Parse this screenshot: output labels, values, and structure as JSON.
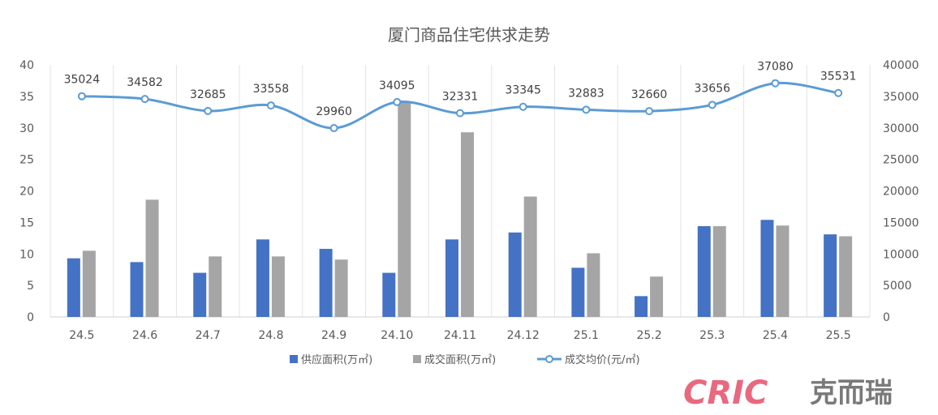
{
  "chart_data": {
    "type": "bar",
    "title": "厦门商品住宅供求走势",
    "categories": [
      "24.5",
      "24.6",
      "24.7",
      "24.8",
      "24.9",
      "24.10",
      "24.11",
      "24.12",
      "25.1",
      "25.2",
      "25.3",
      "25.4",
      "25.5"
    ],
    "left_axis": {
      "min": 0,
      "max": 40,
      "step": 5,
      "ticks": [
        "0",
        "5",
        "10",
        "15",
        "20",
        "25",
        "30",
        "35",
        "40"
      ]
    },
    "right_axis": {
      "min": 0,
      "max": 40000,
      "step": 5000,
      "ticks": [
        "0",
        "5000",
        "10000",
        "15000",
        "20000",
        "25000",
        "30000",
        "35000",
        "40000"
      ]
    },
    "series": [
      {
        "name": "供应面积(万㎡)",
        "kind": "bar",
        "axis": "left",
        "color": "#4472c4",
        "values": [
          9.3,
          8.7,
          7.0,
          12.3,
          10.8,
          7.0,
          12.3,
          13.4,
          7.8,
          3.3,
          14.4,
          15.4,
          13.1
        ]
      },
      {
        "name": "成交面积(万㎡)",
        "kind": "bar",
        "axis": "left",
        "color": "#a5a5a5",
        "values": [
          10.5,
          18.6,
          9.6,
          9.6,
          9.1,
          34.0,
          29.3,
          19.1,
          10.1,
          6.4,
          14.4,
          14.5,
          12.8
        ]
      },
      {
        "name": "成交均价(元/㎡)",
        "kind": "line",
        "axis": "right",
        "color": "#5b9bd5",
        "values": [
          35024,
          34582,
          32685,
          33558,
          29960,
          34095,
          32331,
          33345,
          32883,
          32660,
          33656,
          37080,
          35531
        ],
        "labels": [
          "35024",
          "34582",
          "32685",
          "33558",
          "29960",
          "34095",
          "32331",
          "33345",
          "32883",
          "32660",
          "33656",
          "37080",
          "35531"
        ]
      }
    ],
    "legend_position": "bottom",
    "grid": "vertical category separators"
  },
  "watermark": {
    "latin": "CRIC",
    "cjk": "克而瑞"
  }
}
